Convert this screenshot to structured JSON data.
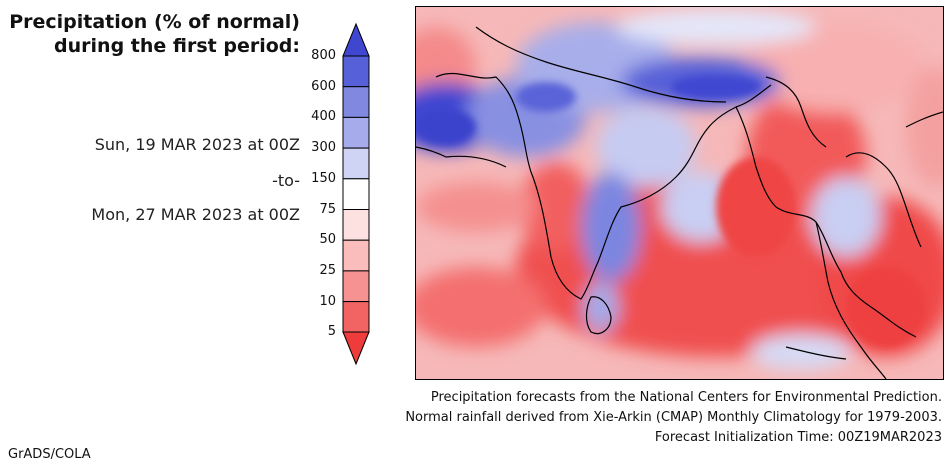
{
  "title": {
    "line1": "Precipitation (% of normal)",
    "line2": "during the first period:"
  },
  "period": {
    "start": "Sun, 19 MAR 2023 at 00Z",
    "separator": "-to-",
    "end": "Mon, 27 MAR 2023 at 00Z"
  },
  "colorbar": {
    "labels": [
      "800",
      "600",
      "400",
      "300",
      "150",
      "75",
      "50",
      "25",
      "10",
      "5"
    ],
    "colors": [
      "#5660d8",
      "#7c86e0",
      "#a3abea",
      "#c9ceF3",
      "#e8eafa",
      "#ffffff",
      "#fde0e0",
      "#fbbcbc",
      "#f79292",
      "#f46a6a",
      "#f04848"
    ],
    "top_arrow_color": "#3f47d1",
    "bottom_arrow_color": "#ee3b3b"
  },
  "credits": {
    "line1": "Precipitation forecasts from the National Centers for Environmental Prediction.",
    "line2": "Normal rainfall derived from Xie-Arkin (CMAP) Monthly Climatology for 1979-2003.",
    "line3": "Forecast Initialization Time: 00Z19MAR2023"
  },
  "software": "GrADS/COLA",
  "map_region": "South and Southeast Asia"
}
